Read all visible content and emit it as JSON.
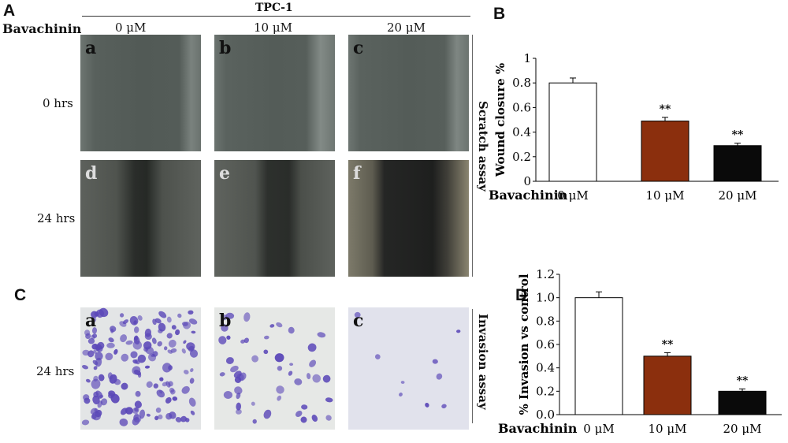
{
  "panels": {
    "A": "A",
    "B": "B",
    "C": "C",
    "D": "D"
  },
  "header": {
    "cell_line": "TPC-1",
    "row_label": "Bavachinin",
    "doses": [
      "0 μM",
      "10 μM",
      "20 μM"
    ]
  },
  "scratch": {
    "side_label": "Scratch assay",
    "rows": [
      {
        "time": "0 hrs",
        "subs": [
          "a",
          "b",
          "c"
        ]
      },
      {
        "time": "24 hrs",
        "subs": [
          "d",
          "e",
          "f"
        ]
      }
    ]
  },
  "invasion": {
    "side_label": "Invasion assay",
    "time": "24 hrs",
    "subs": [
      "a",
      "b",
      "c"
    ]
  },
  "colors": {
    "bar_control": "#ffffff",
    "bar_10": "#8b2f0d",
    "bar_20": "#0a0a0a",
    "phase_bg": "#4d5551",
    "stain_bg": "#e4e5ec",
    "cell_purple": "#5b48b8"
  },
  "chart_data": [
    {
      "type": "bar",
      "panel": "B",
      "title": "",
      "xlabel": "Bavachinin",
      "ylabel": "Wound closure %",
      "categories": [
        "0 μM",
        "10 μM",
        "20 μM"
      ],
      "values": [
        0.8,
        0.49,
        0.29
      ],
      "errors": [
        0.04,
        0.03,
        0.02
      ],
      "significance": [
        "",
        "**",
        "**"
      ],
      "ylim": [
        0,
        1.0
      ],
      "yticks": [
        "0",
        "0.2",
        "0.4",
        "0.6",
        "0.8",
        "1"
      ],
      "grid": false
    },
    {
      "type": "bar",
      "panel": "D",
      "title": "",
      "xlabel": "Bavachinin",
      "ylabel": "% Invasion vs control",
      "categories": [
        "0 μM",
        "10 μM",
        "20 μM"
      ],
      "values": [
        1.0,
        0.5,
        0.2
      ],
      "errors": [
        0.05,
        0.03,
        0.02
      ],
      "significance": [
        "",
        "**",
        "**"
      ],
      "ylim": [
        0,
        1.2
      ],
      "yticks": [
        "0.0",
        "0.2",
        "0.4",
        "0.6",
        "0.8",
        "1.0",
        "1.2"
      ],
      "grid": false
    }
  ]
}
